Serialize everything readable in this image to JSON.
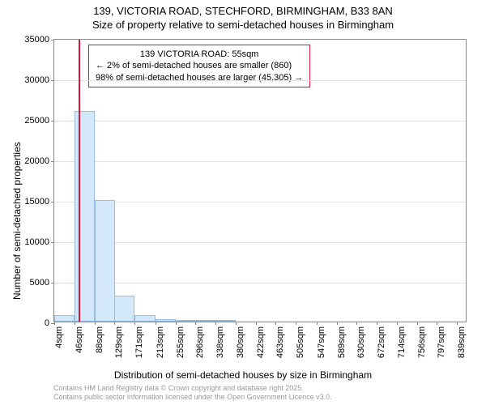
{
  "title_main": "139, VICTORIA ROAD, STECHFORD, BIRMINGHAM, B33 8AN",
  "title_sub": "Size of property relative to semi-detached houses in Birmingham",
  "chart": {
    "type": "histogram",
    "y_axis_label": "Number of semi-detached properties",
    "x_axis_label": "Distribution of semi-detached houses by size in Birmingham",
    "ylim": [
      0,
      35000
    ],
    "y_ticks": [
      0,
      5000,
      10000,
      15000,
      20000,
      25000,
      30000,
      35000
    ],
    "xlim": [
      4,
      860
    ],
    "x_tick_labels": [
      "4sqm",
      "46sqm",
      "88sqm",
      "129sqm",
      "171sqm",
      "213sqm",
      "255sqm",
      "296sqm",
      "338sqm",
      "380sqm",
      "422sqm",
      "463sqm",
      "505sqm",
      "547sqm",
      "589sqm",
      "630sqm",
      "672sqm",
      "714sqm",
      "756sqm",
      "797sqm",
      "839sqm"
    ],
    "x_tick_values": [
      4,
      46,
      88,
      129,
      171,
      213,
      255,
      296,
      338,
      380,
      422,
      463,
      505,
      547,
      589,
      630,
      672,
      714,
      756,
      797,
      839
    ],
    "bar_color": "#d3e8fb",
    "bar_border_color": "#99bde0",
    "bar_width_sqm": 42,
    "bars": [
      {
        "x": 4,
        "value": 800
      },
      {
        "x": 46,
        "value": 26000
      },
      {
        "x": 88,
        "value": 15000
      },
      {
        "x": 129,
        "value": 3200
      },
      {
        "x": 171,
        "value": 800
      },
      {
        "x": 213,
        "value": 300
      },
      {
        "x": 255,
        "value": 150
      },
      {
        "x": 296,
        "value": 80
      },
      {
        "x": 338,
        "value": 50
      }
    ],
    "reference_line": {
      "x": 55,
      "color": "#dc143c"
    },
    "annotation": {
      "line1": "139 VICTORIA ROAD: 55sqm",
      "line2": "← 2% of semi-detached houses are smaller (860)",
      "line3": "98% of semi-detached houses are larger (45,305) →",
      "border_color": "#dc143c",
      "fontsize": 11
    },
    "grid_color": "#e0e0e0",
    "background_color": "#ffffff",
    "border_color": "#888888"
  },
  "footer": {
    "line1": "Contains HM Land Registry data © Crown copyright and database right 2025.",
    "line2": "Contains public sector information licensed under the Open Government Licence v3.0."
  }
}
